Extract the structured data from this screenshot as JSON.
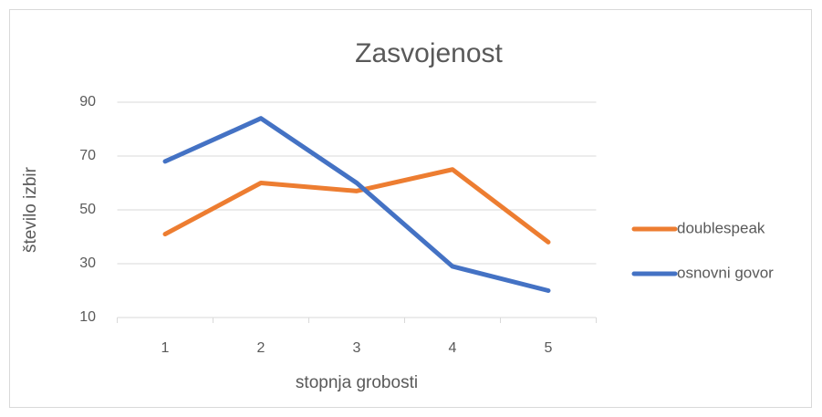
{
  "chart_data": {
    "type": "line",
    "title": "Zasvojenost",
    "x_label": "stopnja grobosti",
    "y_label": "število izbir",
    "categories": [
      "1",
      "2",
      "3",
      "4",
      "5"
    ],
    "series": [
      {
        "name": "doublespeak",
        "color": "#ed7d31",
        "values": [
          41,
          60,
          57,
          65,
          38
        ]
      },
      {
        "name": "osnovni govor",
        "color": "#4472c4",
        "values": [
          68,
          84,
          60,
          29,
          20
        ]
      }
    ],
    "ylim": [
      10,
      90
    ],
    "yticks": [
      10,
      30,
      50,
      70,
      90
    ],
    "grid": true,
    "legend": "right"
  }
}
